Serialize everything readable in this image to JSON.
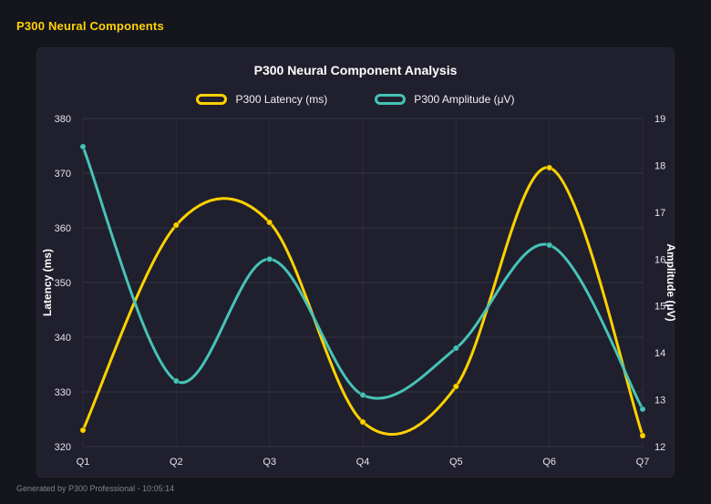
{
  "app": {
    "title": "P300 Neural Components",
    "footer": "Generated by P300 Professional - 10:05:14"
  },
  "colors": {
    "page_background": "#15151e",
    "panel_background": "#201f2d",
    "latency_yellow": "#ffd200",
    "amplitude_teal": "#46c3b7",
    "grid_line": "rgba(255,255,255,0.09)",
    "text_light": "#e4e4ea"
  },
  "chart_data": {
    "type": "line",
    "title": "P300 Neural Component Analysis",
    "categories": [
      "Q1",
      "Q2",
      "Q3",
      "Q4",
      "Q5",
      "Q6",
      "Q7"
    ],
    "series": [
      {
        "name": "P300 Latency (ms)",
        "axis": "left",
        "color": "#ffd200",
        "values": [
          323,
          360.5,
          361,
          324.5,
          331,
          371,
          322
        ]
      },
      {
        "name": "P300 Amplitude (μV)",
        "axis": "right",
        "color": "#46c3b7",
        "values": [
          18.4,
          13.4,
          16.0,
          13.1,
          14.1,
          16.3,
          12.8
        ]
      }
    ],
    "left_axis": {
      "label": "Latency (ms)",
      "min": 320,
      "max": 380,
      "step": 10
    },
    "right_axis": {
      "label": "Amplitude (μV)",
      "min": 12,
      "max": 19,
      "step": 1
    },
    "grid": true,
    "legend_position": "top",
    "curve": "smooth"
  }
}
